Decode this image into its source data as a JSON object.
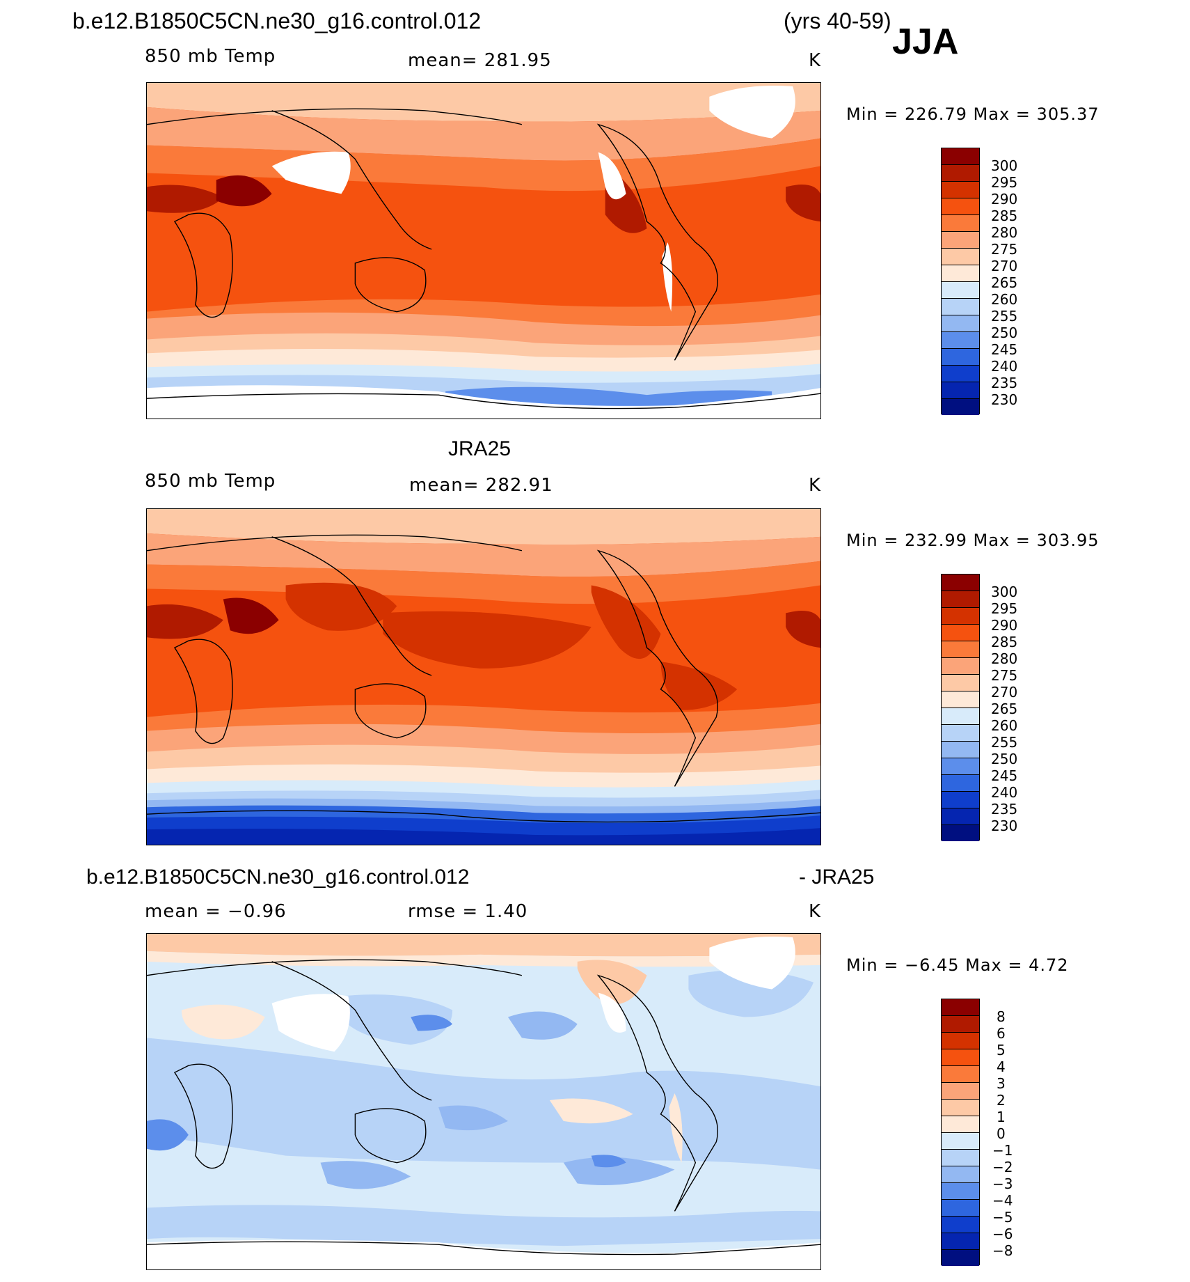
{
  "season": "JJA",
  "header": {
    "case": "b.e12.B1850C5CN.ne30_g16.control.012",
    "years": "(yrs 40-59)"
  },
  "panel1": {
    "left_label": "850 mb Temp",
    "mean_label": "mean=  281.95",
    "units": "K",
    "minmax": "Min  =  226.79  Max  =  305.37",
    "colorbar_labels": [
      "300",
      "295",
      "290",
      "285",
      "280",
      "275",
      "270",
      "265",
      "260",
      "255",
      "250",
      "245",
      "240",
      "235",
      "230"
    ]
  },
  "panel2": {
    "title": "JRA25",
    "left_label": "850 mb Temp",
    "mean_label": "mean=  282.91",
    "units": "K",
    "minmax": "Min  =  232.99  Max  =  303.95",
    "colorbar_labels": [
      "300",
      "295",
      "290",
      "285",
      "280",
      "275",
      "270",
      "265",
      "260",
      "255",
      "250",
      "245",
      "240",
      "235",
      "230"
    ]
  },
  "panel3": {
    "title_left": "b.e12.B1850C5CN.ne30_g16.control.012",
    "title_right": "- JRA25",
    "mean_label": "mean  =    −0.96",
    "rmse_label": "rmse  =     1.40",
    "units": "K",
    "minmax": "Min  =   −6.45  Max  =     4.72",
    "colorbar_labels": [
      "8",
      "6",
      "5",
      "4",
      "3",
      "2",
      "1",
      "0",
      "−1",
      "−2",
      "−3",
      "−4",
      "−5",
      "−6",
      "−8"
    ]
  },
  "colors": {
    "temp_scale": [
      "#8b0000",
      "#b01a00",
      "#d43200",
      "#f5520f",
      "#fa7a3a",
      "#fba479",
      "#fdc9a6",
      "#fee9d8",
      "#d8ebfa",
      "#b7d3f7",
      "#93b8f2",
      "#5c8eeb",
      "#2e66df",
      "#0f3ecc",
      "#0525b0",
      "#000f80"
    ],
    "diff_scale": [
      "#8b0000",
      "#b01a00",
      "#d43200",
      "#f5520f",
      "#fa7a3a",
      "#fba479",
      "#fdc9a6",
      "#fee9d8",
      "#d8ebfa",
      "#b7d3f7",
      "#93b8f2",
      "#5c8eeb",
      "#2e66df",
      "#0f3ecc",
      "#0525b0",
      "#000f80"
    ]
  }
}
